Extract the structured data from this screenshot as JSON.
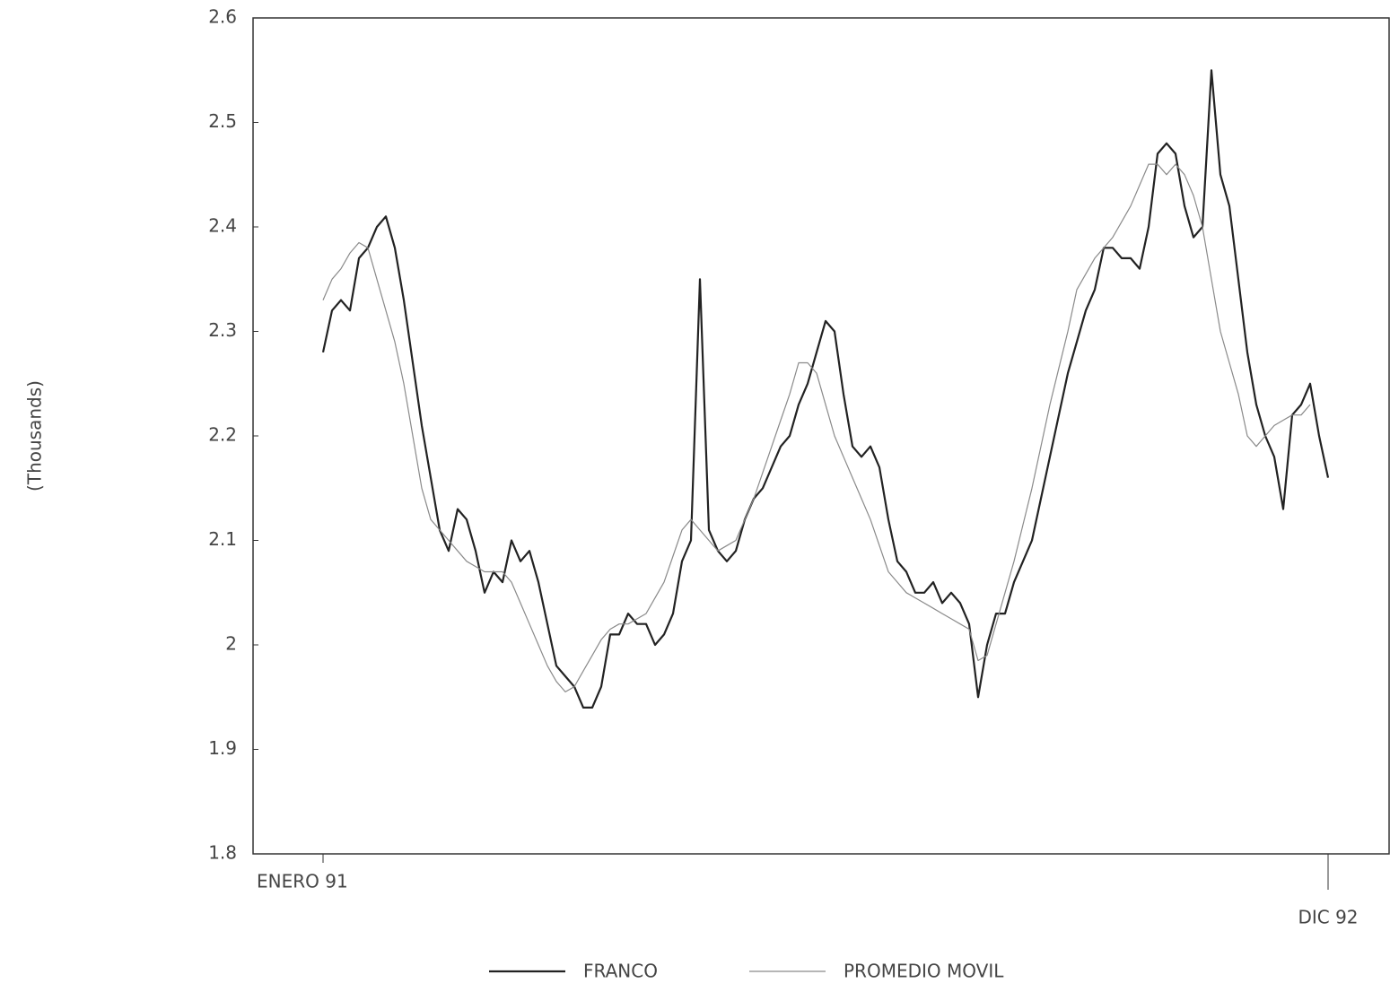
{
  "chart_data": {
    "type": "line",
    "ylabel": "(Thousands)",
    "categories": [
      "ENERO 91",
      null,
      null,
      null,
      null,
      null,
      null,
      null,
      null,
      null,
      null,
      null,
      null,
      null,
      null,
      null,
      null,
      null,
      null,
      null,
      null,
      null,
      null,
      null,
      null,
      null,
      null,
      null,
      null,
      null,
      null,
      null,
      null,
      null,
      null,
      null,
      null,
      null,
      null,
      null,
      null,
      null,
      null,
      null,
      null,
      null,
      null,
      null,
      null,
      null,
      null,
      null,
      null,
      null,
      null,
      null,
      null,
      null,
      null,
      null,
      null,
      null,
      null,
      null,
      null,
      null,
      null,
      null,
      null,
      null,
      null,
      null,
      null,
      null,
      null,
      null,
      null,
      null,
      null,
      null,
      null,
      null,
      null,
      null,
      null,
      null,
      null,
      null,
      null,
      null,
      null,
      null,
      null,
      null,
      null,
      null,
      null,
      null,
      null,
      null,
      null,
      null,
      null,
      null,
      null,
      null,
      null,
      null,
      null,
      null,
      null,
      null,
      "DIC 92"
    ],
    "series": [
      {
        "name": "FRANCO",
        "color": "#222222",
        "width": 2.2,
        "values": [
          2.28,
          2.32,
          2.33,
          2.32,
          2.37,
          2.38,
          2.4,
          2.41,
          2.38,
          2.33,
          2.27,
          2.21,
          2.16,
          2.11,
          2.09,
          2.13,
          2.12,
          2.09,
          2.05,
          2.07,
          2.06,
          2.1,
          2.08,
          2.09,
          2.06,
          2.02,
          1.98,
          1.97,
          1.96,
          1.94,
          1.94,
          1.96,
          2.01,
          2.01,
          2.03,
          2.02,
          2.02,
          2.0,
          2.01,
          2.03,
          2.08,
          2.1,
          2.35,
          2.11,
          2.09,
          2.08,
          2.09,
          2.12,
          2.14,
          2.15,
          2.17,
          2.19,
          2.2,
          2.23,
          2.25,
          2.28,
          2.31,
          2.3,
          2.24,
          2.19,
          2.18,
          2.19,
          2.17,
          2.12,
          2.08,
          2.07,
          2.05,
          2.05,
          2.06,
          2.04,
          2.05,
          2.04,
          2.02,
          1.95,
          2.0,
          2.03,
          2.03,
          2.06,
          2.08,
          2.1,
          2.14,
          2.18,
          2.22,
          2.26,
          2.29,
          2.32,
          2.34,
          2.38,
          2.38,
          2.37,
          2.37,
          2.36,
          2.4,
          2.47,
          2.48,
          2.47,
          2.42,
          2.39,
          2.4,
          2.55,
          2.45,
          2.42,
          2.35,
          2.28,
          2.23,
          2.2,
          2.18,
          2.13,
          2.22,
          2.23,
          2.25,
          2.2,
          2.16
        ]
      },
      {
        "name": "PROMEDIO MOVIL",
        "color": "#8a8a8a",
        "width": 1.2,
        "values": [
          2.33,
          2.35,
          2.36,
          2.375,
          2.385,
          2.38,
          2.35,
          2.32,
          2.29,
          2.25,
          2.2,
          2.15,
          2.12,
          2.11,
          2.1,
          2.09,
          2.08,
          2.075,
          2.07,
          2.07,
          2.07,
          2.06,
          2.04,
          2.02,
          2.0,
          1.98,
          1.965,
          1.955,
          1.96,
          1.975,
          1.99,
          2.005,
          2.015,
          2.02,
          2.02,
          2.025,
          2.03,
          2.045,
          2.06,
          2.085,
          2.11,
          2.12,
          2.11,
          2.1,
          2.09,
          2.095,
          2.1,
          2.12,
          2.14,
          2.165,
          2.19,
          2.215,
          2.24,
          2.27,
          2.27,
          2.26,
          2.23,
          2.2,
          2.18,
          2.16,
          2.14,
          2.12,
          2.095,
          2.07,
          2.06,
          2.05,
          2.045,
          2.04,
          2.035,
          2.03,
          2.025,
          2.02,
          2.015,
          1.985,
          1.99,
          2.02,
          2.05,
          2.08,
          2.115,
          2.15,
          2.19,
          2.23,
          2.265,
          2.3,
          2.34,
          2.355,
          2.37,
          2.38,
          2.39,
          2.405,
          2.42,
          2.44,
          2.46,
          2.46,
          2.45,
          2.46,
          2.45,
          2.43,
          2.4,
          2.35,
          2.3,
          2.27,
          2.24,
          2.2,
          2.19,
          2.2,
          2.21,
          2.215,
          2.22,
          2.22,
          2.23,
          null,
          null
        ]
      }
    ],
    "ylim": [
      1.8,
      2.6
    ],
    "yticks": [
      1.8,
      1.9,
      2,
      2.1,
      2.2,
      2.3,
      2.4,
      2.5,
      2.6
    ],
    "grid": false
  }
}
